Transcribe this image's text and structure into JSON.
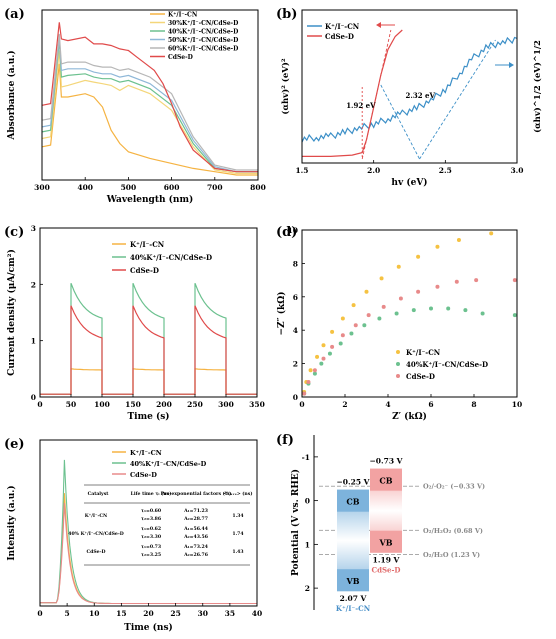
{
  "panel_labels": {
    "a": "(a)",
    "b": "(b)",
    "c": "(c)",
    "d": "(d)",
    "e": "(e)",
    "f": "(f)"
  },
  "chart_data": [
    {
      "panel": "a",
      "type": "line",
      "xlabel": "Wavelength (nm)",
      "ylabel": "Absorbance (a.u.)",
      "xlim": [
        300,
        800
      ],
      "xticks": [
        "300",
        "400",
        "500",
        "600",
        "700",
        "800"
      ],
      "legend_position": "top-right",
      "series": [
        {
          "name": "K⁺/I⁻-CN",
          "color": "#f5b342",
          "points": [
            [
              300,
              0.2
            ],
            [
              320,
              0.21
            ],
            [
              340,
              0.7
            ],
            [
              345,
              0.5
            ],
            [
              360,
              0.5
            ],
            [
              400,
              0.52
            ],
            [
              420,
              0.5
            ],
            [
              440,
              0.44
            ],
            [
              460,
              0.3
            ],
            [
              480,
              0.22
            ],
            [
              500,
              0.17
            ],
            [
              550,
              0.13
            ],
            [
              600,
              0.1
            ],
            [
              650,
              0.07
            ],
            [
              700,
              0.05
            ],
            [
              750,
              0.03
            ],
            [
              800,
              0.03
            ]
          ]
        },
        {
          "name": "30%K⁺/I⁻-CN/CdSe-D",
          "color": "#f4d67a",
          "points": [
            [
              300,
              0.25
            ],
            [
              320,
              0.26
            ],
            [
              340,
              0.78
            ],
            [
              345,
              0.56
            ],
            [
              360,
              0.57
            ],
            [
              400,
              0.6
            ],
            [
              420,
              0.59
            ],
            [
              440,
              0.58
            ],
            [
              460,
              0.57
            ],
            [
              480,
              0.54
            ],
            [
              500,
              0.57
            ],
            [
              550,
              0.52
            ],
            [
              600,
              0.42
            ],
            [
              650,
              0.2
            ],
            [
              700,
              0.06
            ],
            [
              750,
              0.04
            ],
            [
              800,
              0.04
            ]
          ]
        },
        {
          "name": "40%K⁺/I⁻-CN/CdSe-D",
          "color": "#6cc18f",
          "points": [
            [
              300,
              0.29
            ],
            [
              320,
              0.3
            ],
            [
              340,
              0.84
            ],
            [
              345,
              0.62
            ],
            [
              360,
              0.63
            ],
            [
              400,
              0.64
            ],
            [
              420,
              0.62
            ],
            [
              440,
              0.61
            ],
            [
              460,
              0.61
            ],
            [
              480,
              0.59
            ],
            [
              500,
              0.6
            ],
            [
              550,
              0.55
            ],
            [
              600,
              0.45
            ],
            [
              650,
              0.22
            ],
            [
              700,
              0.07
            ],
            [
              750,
              0.05
            ],
            [
              800,
              0.05
            ]
          ]
        },
        {
          "name": "50%K⁺/I⁻-CN/CdSe-D",
          "color": "#8fb8d8",
          "points": [
            [
              300,
              0.32
            ],
            [
              320,
              0.33
            ],
            [
              340,
              0.86
            ],
            [
              345,
              0.66
            ],
            [
              360,
              0.67
            ],
            [
              400,
              0.67
            ],
            [
              420,
              0.65
            ],
            [
              440,
              0.64
            ],
            [
              460,
              0.64
            ],
            [
              480,
              0.62
            ],
            [
              500,
              0.63
            ],
            [
              550,
              0.58
            ],
            [
              600,
              0.48
            ],
            [
              650,
              0.24
            ],
            [
              700,
              0.08
            ],
            [
              750,
              0.05
            ],
            [
              800,
              0.05
            ]
          ]
        },
        {
          "name": "60%K⁺/I⁻-CN/CdSe-D",
          "color": "#b7b7b7",
          "points": [
            [
              300,
              0.36
            ],
            [
              320,
              0.37
            ],
            [
              340,
              0.88
            ],
            [
              345,
              0.7
            ],
            [
              360,
              0.71
            ],
            [
              400,
              0.71
            ],
            [
              420,
              0.69
            ],
            [
              440,
              0.68
            ],
            [
              460,
              0.68
            ],
            [
              480,
              0.66
            ],
            [
              500,
              0.67
            ],
            [
              550,
              0.62
            ],
            [
              600,
              0.52
            ],
            [
              650,
              0.26
            ],
            [
              700,
              0.09
            ],
            [
              750,
              0.06
            ],
            [
              800,
              0.06
            ]
          ]
        },
        {
          "name": "CdSe-D",
          "color": "#e04a4a",
          "points": [
            [
              300,
              0.45
            ],
            [
              320,
              0.46
            ],
            [
              340,
              0.95
            ],
            [
              345,
              0.85
            ],
            [
              360,
              0.84
            ],
            [
              400,
              0.86
            ],
            [
              420,
              0.82
            ],
            [
              440,
              0.82
            ],
            [
              460,
              0.81
            ],
            [
              480,
              0.79
            ],
            [
              500,
              0.78
            ],
            [
              520,
              0.74
            ],
            [
              540,
              0.7
            ],
            [
              560,
              0.66
            ],
            [
              580,
              0.58
            ],
            [
              600,
              0.46
            ],
            [
              620,
              0.32
            ],
            [
              650,
              0.18
            ],
            [
              700,
              0.07
            ],
            [
              750,
              0.05
            ],
            [
              800,
              0.05
            ]
          ]
        }
      ]
    },
    {
      "panel": "b",
      "type": "line",
      "xlabel": "hv (eV)",
      "ylabel": "(αhv)² (eV)²",
      "ylabel_right": "(αhv)^1/2 (eV)^1/2",
      "xlim": [
        1.5,
        3.0
      ],
      "xticks": [
        "1.5",
        "2.0",
        "2.5",
        "3.0"
      ],
      "annotations": [
        {
          "text": "1.92 eV",
          "x": 1.92,
          "color": "#e04a4a"
        },
        {
          "text": "2.32 eV",
          "x": 2.32,
          "color": "#3c8fc7"
        }
      ],
      "series": [
        {
          "name": "K⁺/I⁻-CN",
          "color": "#3c8fc7",
          "axis": "right",
          "points": [
            [
              1.5,
              0.15
            ],
            [
              1.6,
              0.16
            ],
            [
              1.7,
              0.17
            ],
            [
              1.8,
              0.2
            ],
            [
              1.9,
              0.23
            ],
            [
              2.0,
              0.26
            ],
            [
              2.1,
              0.3
            ],
            [
              2.2,
              0.34
            ],
            [
              2.3,
              0.38
            ],
            [
              2.4,
              0.44
            ],
            [
              2.5,
              0.52
            ],
            [
              2.6,
              0.64
            ],
            [
              2.7,
              0.76
            ],
            [
              2.8,
              0.84
            ],
            [
              2.9,
              0.87
            ],
            [
              3.0,
              0.9
            ]
          ]
        },
        {
          "name": "CdSe-D",
          "color": "#e04a4a",
          "axis": "left",
          "points": [
            [
              1.5,
              0.02
            ],
            [
              1.7,
              0.02
            ],
            [
              1.85,
              0.03
            ],
            [
              1.92,
              0.05
            ],
            [
              1.95,
              0.15
            ],
            [
              2.0,
              0.4
            ],
            [
              2.05,
              0.65
            ],
            [
              2.1,
              0.85
            ],
            [
              2.15,
              0.95
            ],
            [
              2.2,
              1.0
            ]
          ]
        }
      ]
    },
    {
      "panel": "c",
      "type": "line",
      "xlabel": "Time (s)",
      "ylabel": "Current density (μA/cm²)",
      "xlim": [
        0,
        350
      ],
      "ylim": [
        0,
        3
      ],
      "xticks": [
        "0",
        "50",
        "100",
        "150",
        "200",
        "250",
        "300",
        "350"
      ],
      "yticks": [
        "0",
        "1",
        "2",
        "3"
      ],
      "legend_position": "top-right",
      "light_on": [
        50,
        150,
        250
      ],
      "light_off": [
        100,
        200,
        300
      ],
      "series": [
        {
          "name": "K⁺/I⁻-CN",
          "color": "#f5b342",
          "on_start": 0.5,
          "on_end": 0.48,
          "baseline": 0.05
        },
        {
          "name": "40%K⁺/I⁻-CN/CdSe-D",
          "color": "#6cc18f",
          "on_start": 2.02,
          "on_end": 1.4,
          "baseline": 0.05
        },
        {
          "name": "CdSe-D",
          "color": "#e04a4a",
          "on_start": 1.62,
          "on_end": 1.05,
          "baseline": 0.05
        }
      ]
    },
    {
      "panel": "d",
      "type": "scatter",
      "xlabel": "Z′ (kΩ)",
      "ylabel": "−Z″ (kΩ)",
      "xlim": [
        0,
        10
      ],
      "ylim": [
        0,
        10
      ],
      "xticks": [
        "0",
        "2",
        "4",
        "6",
        "8",
        "10"
      ],
      "yticks": [
        "0",
        "2",
        "4",
        "6",
        "8",
        "10"
      ],
      "legend_position": "bottom-right",
      "series": [
        {
          "name": "K⁺/I⁻-CN",
          "color": "#f5c242",
          "points": [
            [
              0.1,
              0.3
            ],
            [
              0.2,
              0.9
            ],
            [
              0.4,
              1.6
            ],
            [
              0.7,
              2.4
            ],
            [
              1.0,
              3.1
            ],
            [
              1.4,
              3.9
            ],
            [
              1.9,
              4.7
            ],
            [
              2.4,
              5.5
            ],
            [
              3.0,
              6.3
            ],
            [
              3.7,
              7.1
            ],
            [
              4.5,
              7.8
            ],
            [
              5.4,
              8.4
            ],
            [
              6.3,
              9.0
            ],
            [
              7.3,
              9.4
            ],
            [
              8.8,
              9.8
            ]
          ]
        },
        {
          "name": "40%K⁺/I⁻-CN/CdSe-D",
          "color": "#6cc18f",
          "points": [
            [
              0.1,
              0.2
            ],
            [
              0.3,
              0.8
            ],
            [
              0.6,
              1.4
            ],
            [
              0.9,
              2.0
            ],
            [
              1.3,
              2.6
            ],
            [
              1.8,
              3.2
            ],
            [
              2.3,
              3.8
            ],
            [
              2.9,
              4.3
            ],
            [
              3.6,
              4.7
            ],
            [
              4.4,
              5.0
            ],
            [
              5.2,
              5.2
            ],
            [
              6.0,
              5.3
            ],
            [
              6.8,
              5.3
            ],
            [
              7.6,
              5.2
            ],
            [
              8.4,
              5.0
            ],
            [
              9.9,
              4.9
            ]
          ]
        },
        {
          "name": "CdSe-D",
          "color": "#e88a8a",
          "points": [
            [
              0.1,
              0.2
            ],
            [
              0.3,
              0.9
            ],
            [
              0.6,
              1.6
            ],
            [
              1.0,
              2.3
            ],
            [
              1.4,
              3.0
            ],
            [
              1.9,
              3.7
            ],
            [
              2.5,
              4.3
            ],
            [
              3.1,
              4.9
            ],
            [
              3.8,
              5.4
            ],
            [
              4.6,
              5.9
            ],
            [
              5.4,
              6.3
            ],
            [
              6.3,
              6.6
            ],
            [
              7.2,
              6.9
            ],
            [
              8.1,
              7.0
            ],
            [
              9.9,
              7.0
            ]
          ]
        }
      ]
    },
    {
      "panel": "e",
      "type": "line",
      "xlabel": "Time (ns)",
      "ylabel": "Intensity (a.u.)",
      "xlim": [
        0,
        40
      ],
      "xticks": [
        "0",
        "5",
        "10",
        "15",
        "20",
        "25",
        "30",
        "35",
        "40"
      ],
      "legend_position": "top-right",
      "series": [
        {
          "name": "K⁺/I⁻-CN",
          "color": "#f5b342",
          "peak": 0.68
        },
        {
          "name": "40%K⁺/I⁻-CN/CdSe-D",
          "color": "#6cc18f",
          "peak": 0.88
        },
        {
          "name": "CdSe-D",
          "color": "#e88a8a",
          "peak": 0.62
        }
      ],
      "table": {
        "headers": [
          "Catalyst",
          "Life time τᵢ (ns)",
          "Pre-exponential factors (%)",
          "<τₐᵥₑ> (ns)"
        ],
        "rows": [
          {
            "catalyst": "K⁺/I⁻-CN",
            "tau": [
              "τ₁=0.60",
              "τ₂=3.86"
            ],
            "factors": [
              "A₁=71.23",
              "A₂=28.77"
            ],
            "ave": "1.34"
          },
          {
            "catalyst": "40% K⁺/I⁻-CN/CdSe-D",
            "tau": [
              "τ₁=0.62",
              "τ₂=3.30"
            ],
            "factors": [
              "A₁=56.44",
              "A₂=43.56"
            ],
            "ave": "1.74"
          },
          {
            "catalyst": "CdSe-D",
            "tau": [
              "τ₁=0.73",
              "τ₂=3.25"
            ],
            "factors": [
              "A₁=73.24",
              "A₂=26.76"
            ],
            "ave": "1.43"
          }
        ]
      }
    },
    {
      "panel": "f",
      "type": "diagram",
      "ylabel": "Potential (V vs. RHE)",
      "ylim": [
        -1.5,
        2.5
      ],
      "yticks": [
        "-1",
        "0",
        "1",
        "2"
      ],
      "materials": [
        {
          "name": "K⁺/I⁻-CN",
          "cb": -0.25,
          "vb": 2.07,
          "cb_label": "−0.25 V",
          "vb_label": "2.07 V",
          "color": "#7db3dc",
          "label_color": "#4a90c8"
        },
        {
          "name": "CdSe-D",
          "cb": -0.73,
          "vb": 1.19,
          "cb_label": "−0.73 V",
          "vb_label": "1.19 V",
          "color": "#f2a2a2",
          "label_color": "#e06a6a"
        }
      ],
      "band_names": {
        "cb": "CB",
        "vb": "VB"
      },
      "redox": [
        {
          "label": "O₂/·O₂⁻ (−0.33 V)",
          "value": -0.33
        },
        {
          "label": "O₂/H₂O₂ (0.68 V)",
          "value": 0.68
        },
        {
          "label": "O₂/H₂O (1.23 V)",
          "value": 1.23
        }
      ]
    }
  ]
}
